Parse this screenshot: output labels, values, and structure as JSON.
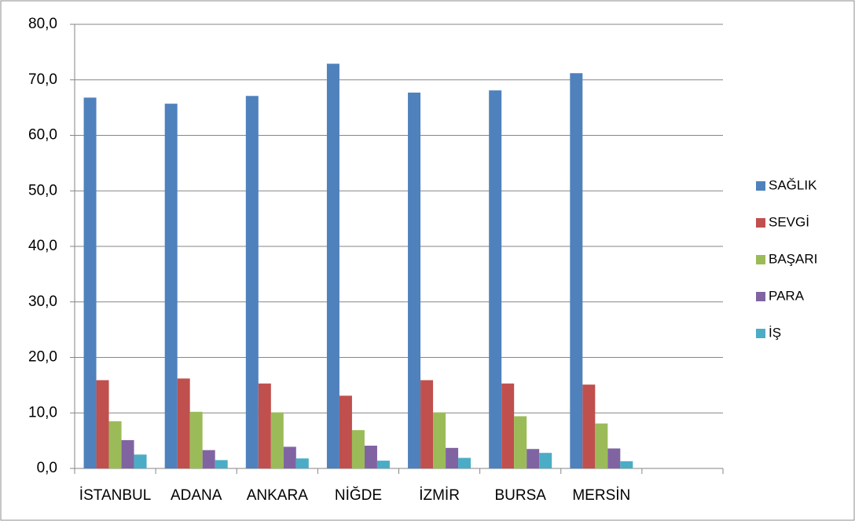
{
  "chart_data": {
    "type": "bar",
    "categories": [
      "İSTANBUL",
      "ADANA",
      "ANKARA",
      "NİĞDE",
      "İZMİR",
      "BURSA",
      "MERSİN",
      null
    ],
    "series": [
      {
        "name": "SAĞLIK",
        "color": "#4f81bd",
        "values": [
          66.8,
          65.7,
          67.1,
          72.9,
          67.7,
          68.1,
          71.2,
          null
        ]
      },
      {
        "name": "SEVGİ",
        "color": "#c0504d",
        "values": [
          15.9,
          16.2,
          15.3,
          13.1,
          15.9,
          15.3,
          15.1,
          null
        ]
      },
      {
        "name": "BAŞARI",
        "color": "#9bbb59",
        "values": [
          8.5,
          10.2,
          10.1,
          6.9,
          10.1,
          9.4,
          8.1,
          null
        ]
      },
      {
        "name": "PARA",
        "color": "#8064a2",
        "values": [
          5.1,
          3.3,
          3.9,
          4.1,
          3.7,
          3.5,
          3.6,
          null
        ]
      },
      {
        "name": "İŞ",
        "color": "#4bacc6",
        "values": [
          2.5,
          1.5,
          1.8,
          1.4,
          1.9,
          2.8,
          1.3,
          null
        ]
      }
    ],
    "ylim": [
      0,
      80
    ],
    "yticks": [
      {
        "value": 0,
        "label": "0,0"
      },
      {
        "value": 10,
        "label": "10,0"
      },
      {
        "value": 20,
        "label": "20,0"
      },
      {
        "value": 30,
        "label": "30,0"
      },
      {
        "value": 40,
        "label": "40,0"
      },
      {
        "value": 50,
        "label": "50,0"
      },
      {
        "value": 60,
        "label": "60,0"
      },
      {
        "value": 70,
        "label": "70,0"
      },
      {
        "value": 80,
        "label": "80,0"
      }
    ],
    "grid": true,
    "legend": "right"
  }
}
